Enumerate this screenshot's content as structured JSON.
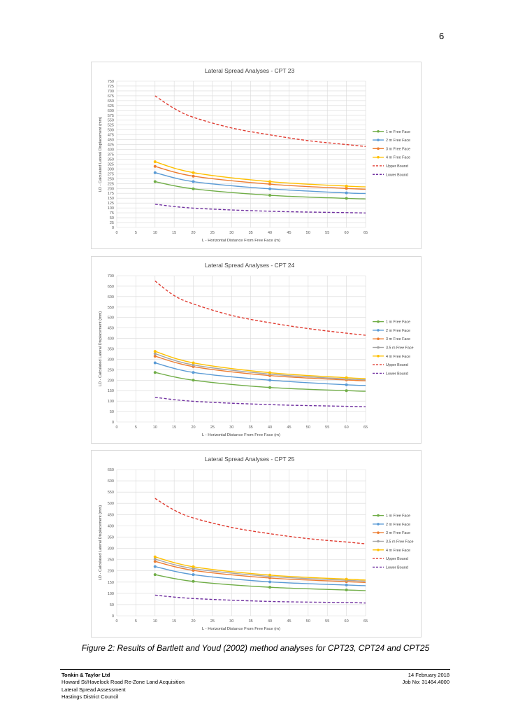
{
  "page": {
    "number": "6"
  },
  "caption": "Figure 2: Results of Bartlett and Youd (2002) method analyses for CPT23, CPT24 and CPT25",
  "footer": {
    "company": "Tonkin & Taylor Ltd",
    "project": "Howard St/Havelock Road Re-Zone Land Acquisition",
    "report": "Lateral Spread Assessment",
    "client": "Hastings District Council",
    "date": "14 February 2018",
    "job": "Job No: 31464.4000"
  },
  "colors": {
    "1m": "#70ad47",
    "2m": "#5b9bd5",
    "3m": "#ed7d31",
    "3_5m": "#a5a5a5",
    "4m": "#ffc000",
    "upper": "#e03c31",
    "lower": "#7030a0",
    "grid": "#d9d9d9"
  },
  "chart_data": [
    {
      "type": "line",
      "title": "Lateral Spread Analyses - CPT 23",
      "xlabel": "L - Horizontal Distance From Free Face (m)",
      "ylabel": "LD - Calculated Lateral Displacement (mm)",
      "xlim": [
        0,
        65
      ],
      "xticks": [
        0,
        5,
        10,
        15,
        20,
        25,
        30,
        35,
        40,
        45,
        50,
        55,
        60,
        65
      ],
      "ylim": [
        0,
        750
      ],
      "ystep": 25,
      "grid": true,
      "legend": "right",
      "series": [
        {
          "name": "1 m Free Face",
          "key": "1m",
          "style": "marker",
          "x": [
            10,
            20,
            40,
            60,
            65
          ],
          "y": [
            235,
            198,
            165,
            149,
            146
          ]
        },
        {
          "name": "2 m Free Face",
          "key": "2m",
          "style": "marker",
          "x": [
            10,
            20,
            40,
            60,
            65
          ],
          "y": [
            281,
            235,
            198,
            177,
            174
          ]
        },
        {
          "name": "3 m Free Face",
          "key": "3m",
          "style": "marker",
          "x": [
            10,
            20,
            40,
            60,
            65
          ],
          "y": [
            313,
            263,
            222,
            200,
            196
          ]
        },
        {
          "name": "4 m Free Face",
          "key": "4m",
          "style": "marker",
          "x": [
            10,
            20,
            40,
            60,
            65
          ],
          "y": [
            337,
            281,
            235,
            212,
            208
          ]
        },
        {
          "name": "Upper Bound",
          "key": "upper",
          "style": "dash",
          "x": [
            10,
            15,
            20,
            30,
            40,
            50,
            60,
            65
          ],
          "y": [
            675,
            610,
            565,
            510,
            475,
            445,
            425,
            415
          ]
        },
        {
          "name": "Lower Bound",
          "key": "lower",
          "style": "dash",
          "x": [
            10,
            20,
            40,
            60,
            65
          ],
          "y": [
            119,
            99,
            83,
            76,
            74
          ]
        }
      ]
    },
    {
      "type": "line",
      "title": "Lateral Spread Analyses - CPT 24",
      "xlabel": "L - Horizontal Distance From Free Face (m)",
      "ylabel": "LD - Calculated Lateral Displacement (mm)",
      "xlim": [
        0,
        65
      ],
      "xticks": [
        0,
        5,
        10,
        15,
        20,
        25,
        30,
        35,
        40,
        45,
        50,
        55,
        60,
        65
      ],
      "ylim": [
        0,
        700
      ],
      "ystep": 50,
      "grid": true,
      "legend": "right",
      "series": [
        {
          "name": "1 m Free Face",
          "key": "1m",
          "style": "marker",
          "x": [
            10,
            20,
            40,
            60,
            65
          ],
          "y": [
            237,
            200,
            165,
            150,
            147
          ]
        },
        {
          "name": "2 m Free Face",
          "key": "2m",
          "style": "marker",
          "x": [
            10,
            20,
            40,
            60,
            65
          ],
          "y": [
            283,
            237,
            200,
            178,
            175
          ]
        },
        {
          "name": "3 m Free Face",
          "key": "3m",
          "style": "marker",
          "x": [
            10,
            20,
            40,
            60,
            65
          ],
          "y": [
            315,
            265,
            222,
            201,
            197
          ]
        },
        {
          "name": "3.5 m Free Face",
          "key": "3_5m",
          "style": "marker",
          "x": [
            10,
            20,
            40,
            60,
            65
          ],
          "y": [
            327,
            273,
            229,
            206,
            202
          ]
        },
        {
          "name": "4 m Free Face",
          "key": "4m",
          "style": "marker",
          "x": [
            10,
            20,
            40,
            60,
            65
          ],
          "y": [
            338,
            283,
            236,
            212,
            208
          ]
        },
        {
          "name": "Upper Bound",
          "key": "upper",
          "style": "dash",
          "x": [
            10,
            15,
            20,
            30,
            40,
            50,
            60,
            65
          ],
          "y": [
            675,
            605,
            565,
            510,
            475,
            447,
            425,
            415
          ]
        },
        {
          "name": "Lower Bound",
          "key": "lower",
          "style": "dash",
          "x": [
            10,
            20,
            40,
            60,
            65
          ],
          "y": [
            118,
            99,
            83,
            75,
            73
          ]
        }
      ]
    },
    {
      "type": "line",
      "title": "Lateral Spread Analyses - CPT 25",
      "xlabel": "L - Horizontal Distance From Free Face (m)",
      "ylabel": "LD - Calculated Lateral Displacement (mm)",
      "xlim": [
        0,
        65
      ],
      "xticks": [
        0,
        5,
        10,
        15,
        20,
        25,
        30,
        35,
        40,
        45,
        50,
        55,
        60,
        65
      ],
      "ylim": [
        0,
        650
      ],
      "ystep": 50,
      "grid": true,
      "legend": "right",
      "series": [
        {
          "name": "1 m Free Face",
          "key": "1m",
          "style": "marker",
          "x": [
            10,
            20,
            40,
            60,
            65
          ],
          "y": [
            183,
            153,
            127,
            115,
            112
          ]
        },
        {
          "name": "2 m Free Face",
          "key": "2m",
          "style": "marker",
          "x": [
            10,
            20,
            40,
            60,
            65
          ],
          "y": [
            219,
            183,
            151,
            137,
            134
          ]
        },
        {
          "name": "3 m Free Face",
          "key": "3m",
          "style": "marker",
          "x": [
            10,
            20,
            40,
            60,
            65
          ],
          "y": [
            242,
            202,
            168,
            152,
            148
          ]
        },
        {
          "name": "3.5 m Free Face",
          "key": "3_5m",
          "style": "marker",
          "x": [
            10,
            20,
            40,
            60,
            65
          ],
          "y": [
            252,
            210,
            175,
            158,
            154
          ]
        },
        {
          "name": "4 m Free Face",
          "key": "4m",
          "style": "marker",
          "x": [
            10,
            20,
            40,
            60,
            65
          ],
          "y": [
            262,
            218,
            181,
            163,
            159
          ]
        },
        {
          "name": "Upper Bound",
          "key": "upper",
          "style": "dash",
          "x": [
            10,
            15,
            20,
            30,
            40,
            50,
            60,
            65
          ],
          "y": [
            522,
            470,
            435,
            393,
            365,
            343,
            328,
            320
          ]
        },
        {
          "name": "Lower Bound",
          "key": "lower",
          "style": "dash",
          "x": [
            10,
            20,
            40,
            60,
            65
          ],
          "y": [
            92,
            77,
            64,
            59,
            57
          ]
        }
      ]
    }
  ]
}
